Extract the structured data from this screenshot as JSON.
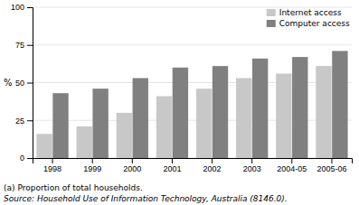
{
  "chart_data": {
    "type": "bar",
    "categories": [
      "1998",
      "1999",
      "2000",
      "2001",
      "2002",
      "2003",
      "2004-05",
      "2005-06"
    ],
    "series": [
      {
        "name": "Internet access",
        "color": "#c8c8c8",
        "values": [
          16,
          21,
          30,
          41,
          46,
          53,
          56,
          61
        ]
      },
      {
        "name": "Computer access",
        "color": "#808080",
        "values": [
          43,
          46,
          53,
          60,
          61,
          66,
          67,
          71
        ]
      }
    ],
    "ylabel": "%",
    "ylim": [
      0,
      100
    ],
    "yticks": [
      0,
      25,
      50,
      75,
      100
    ],
    "grid": true,
    "legend": "upper right",
    "annotations": [
      "(a) Proportion of total households.",
      "Source: Household Use of Information Technology, Australia (8146.0)."
    ]
  }
}
